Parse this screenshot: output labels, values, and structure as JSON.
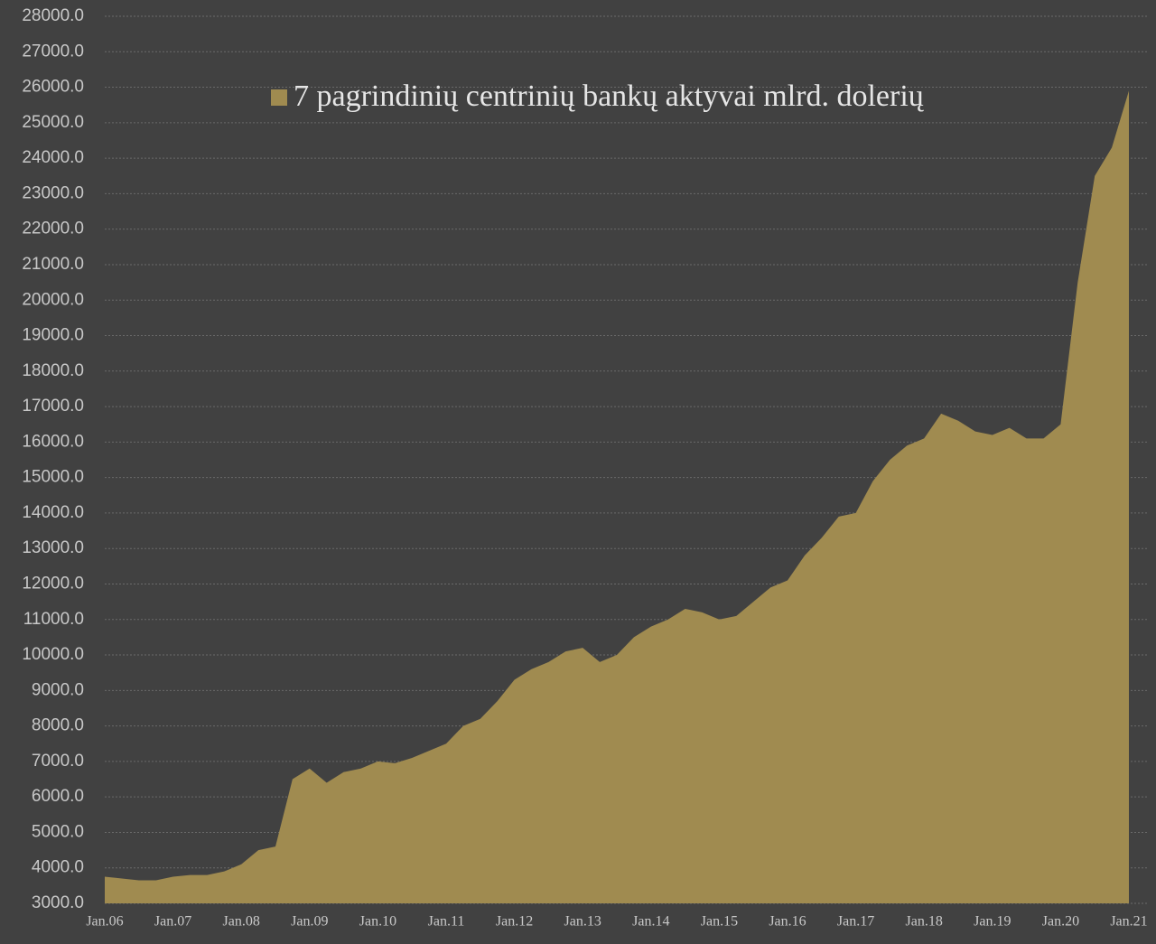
{
  "chart_data": {
    "type": "area",
    "categories": [
      "Jan.06",
      null,
      null,
      null,
      "Jan.07",
      null,
      null,
      null,
      "Jan.08",
      null,
      null,
      null,
      "Jan.09",
      null,
      null,
      null,
      "Jan.10",
      null,
      null,
      null,
      "Jan.11",
      null,
      null,
      null,
      "Jan.12",
      null,
      null,
      null,
      "Jan.13",
      null,
      null,
      null,
      "Jan.14",
      null,
      null,
      null,
      "Jan.15",
      null,
      null,
      null,
      "Jan.16",
      null,
      null,
      null,
      "Jan.17",
      null,
      null,
      null,
      "Jan.18",
      null,
      null,
      null,
      "Jan.19",
      null,
      null,
      null,
      "Jan.20",
      null,
      null,
      null,
      "Jan.21"
    ],
    "series": [
      {
        "name": "7 pagrindinių centrinių bankų aktyvai mlrd. dolerių",
        "color": "#a08b50",
        "values": [
          3750,
          3700,
          3650,
          3650,
          3750,
          3800,
          3800,
          3900,
          4100,
          4500,
          4600,
          6500,
          6800,
          6400,
          6700,
          6800,
          7000,
          6950,
          7100,
          7300,
          7500,
          8000,
          8200,
          8700,
          9300,
          9600,
          9800,
          10100,
          10200,
          9800,
          10000,
          10500,
          10800,
          11000,
          11300,
          11200,
          11000,
          11100,
          11500,
          11900,
          12100,
          12800,
          13300,
          13900,
          14000,
          14900,
          15500,
          15900,
          16100,
          16800,
          16600,
          16300,
          16200,
          16400,
          16100,
          16100,
          16500,
          20500,
          23500,
          24300,
          25900
        ]
      }
    ],
    "ylim": [
      3000,
      28000
    ],
    "yticks": [
      {
        "value": 3000,
        "label": "3000.0"
      },
      {
        "value": 4000,
        "label": "4000.0"
      },
      {
        "value": 5000,
        "label": "5000.0"
      },
      {
        "value": 6000,
        "label": "6000.0"
      },
      {
        "value": 7000,
        "label": "7000.0"
      },
      {
        "value": 8000,
        "label": "8000.0"
      },
      {
        "value": 9000,
        "label": "9000.0"
      },
      {
        "value": 10000,
        "label": "10000.0"
      },
      {
        "value": 11000,
        "label": "11000.0"
      },
      {
        "value": 12000,
        "label": "12000.0"
      },
      {
        "value": 13000,
        "label": "13000.0"
      },
      {
        "value": 14000,
        "label": "14000.0"
      },
      {
        "value": 15000,
        "label": "15000.0"
      },
      {
        "value": 16000,
        "label": "16000.0"
      },
      {
        "value": 17000,
        "label": "17000.0"
      },
      {
        "value": 18000,
        "label": "18000.0"
      },
      {
        "value": 19000,
        "label": "19000.0"
      },
      {
        "value": 20000,
        "label": "20000.0"
      },
      {
        "value": 21000,
        "label": "21000.0"
      },
      {
        "value": 22000,
        "label": "22000.0"
      },
      {
        "value": 23000,
        "label": "23000.0"
      },
      {
        "value": 24000,
        "label": "24000.0"
      },
      {
        "value": 25000,
        "label": "25000.0"
      },
      {
        "value": 26000,
        "label": "26000.0"
      },
      {
        "value": 27000,
        "label": "27000.0"
      },
      {
        "value": 28000,
        "label": "28000.0"
      }
    ],
    "grid": true,
    "legend": "top"
  }
}
